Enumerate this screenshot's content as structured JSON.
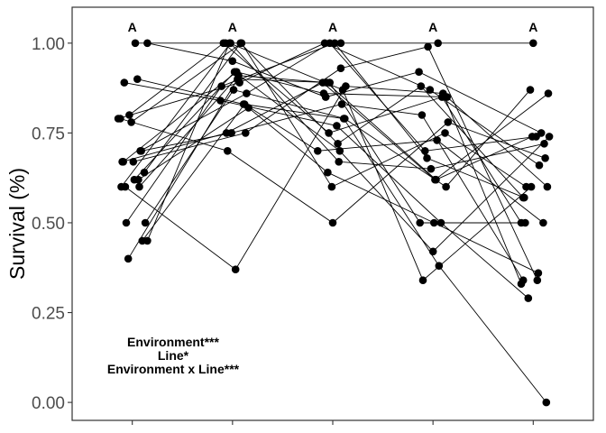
{
  "chart_data": {
    "type": "line",
    "title": "",
    "xlabel": "",
    "ylabel": "Survival (%)",
    "ylim": [
      -0.05,
      1.1
    ],
    "yticks": [
      0.0,
      0.25,
      0.5,
      0.75,
      1.0
    ],
    "ytick_labels": [
      "0.00",
      "0.25",
      "0.50",
      "0.75",
      "1.00"
    ],
    "xlim": [
      0.4,
      5.6
    ],
    "xticks": [
      1,
      2,
      3,
      4,
      5
    ],
    "grid": false,
    "legend": "none",
    "colors": {
      "points": "#000000",
      "lines": "#000000",
      "axis": "#333333",
      "ticks": "#4d4d4d"
    },
    "group_letters": [
      {
        "x": 1,
        "y": 1.045,
        "label": "A"
      },
      {
        "x": 2,
        "y": 1.045,
        "label": "A"
      },
      {
        "x": 3,
        "y": 1.045,
        "label": "A"
      },
      {
        "x": 4,
        "y": 1.045,
        "label": "A"
      },
      {
        "x": 5,
        "y": 1.045,
        "label": "A"
      }
    ],
    "annotations": [
      "Environment***",
      "Line*",
      "Environment x Line***"
    ],
    "series": [
      {
        "x": [
          1.03,
          1.93,
          3.08,
          4.05,
          5.0
        ],
        "y": [
          1.0,
          1.0,
          1.0,
          1.0,
          1.0
        ]
      },
      {
        "x": [
          0.96,
          2.05,
          2.97,
          3.87,
          4.92
        ],
        "y": [
          0.4,
          0.9,
          0.89,
          0.5,
          0.5
        ]
      },
      {
        "x": [
          1.1,
          2.12,
          2.85,
          4.04,
          5.1
        ],
        "y": [
          0.45,
          0.83,
          0.7,
          0.73,
          0.5
        ]
      },
      {
        "x": [
          1.15,
          1.97,
          3.1,
          3.9,
          4.98
        ],
        "y": [
          0.45,
          1.0,
          0.87,
          0.34,
          0.6
        ]
      },
      {
        "x": [
          0.93,
          2.03,
          3.13,
          4.1,
          4.88
        ],
        "y": [
          0.6,
          0.37,
          0.88,
          0.86,
          0.33
        ]
      },
      {
        "x": [
          0.88,
          1.95,
          3.0,
          4.15,
          5.12
        ],
        "y": [
          0.79,
          0.7,
          0.5,
          0.78,
          0.68
        ]
      },
      {
        "x": [
          1.12,
          2.08,
          3.05,
          3.88,
          4.9
        ],
        "y": [
          0.64,
          1.0,
          0.72,
          0.88,
          0.57
        ]
      },
      {
        "x": [
          0.9,
          1.94,
          2.9,
          4.02,
          5.15
        ],
        "y": [
          0.67,
          0.75,
          0.89,
          0.62,
          0.86
        ]
      },
      {
        "x": [
          1.08,
          2.14,
          2.97,
          3.92,
          5.03
        ],
        "y": [
          0.7,
          0.86,
          1.0,
          0.7,
          0.74
        ]
      },
      {
        "x": [
          0.92,
          1.88,
          3.04,
          4.08,
          4.95
        ],
        "y": [
          0.89,
          0.84,
          0.77,
          0.5,
          0.29
        ]
      },
      {
        "x": [
          1.15,
          2.0,
          2.93,
          3.86,
          5.08
        ],
        "y": [
          1.0,
          0.95,
          0.85,
          0.92,
          0.75
        ]
      },
      {
        "x": [
          1.02,
          2.02,
          3.07,
          4.0,
          5.16
        ],
        "y": [
          0.62,
          0.92,
          0.7,
          0.42,
          0.74
        ]
      },
      {
        "x": [
          0.99,
          2.09,
          2.99,
          4.12,
          4.93
        ],
        "y": [
          0.78,
          1.0,
          0.6,
          0.75,
          0.6
        ]
      },
      {
        "x": [
          1.05,
          2.11,
          3.11,
          4.06,
          5.13
        ],
        "y": [
          0.9,
          0.83,
          0.79,
          0.38,
          0.0
        ]
      },
      {
        "x": [
          0.94,
          1.89,
          3.02,
          3.94,
          4.91
        ],
        "y": [
          0.5,
          0.88,
          1.0,
          0.68,
          0.57
        ]
      },
      {
        "x": [
          1.07,
          2.06,
          2.94,
          4.03,
          4.99
        ],
        "y": [
          0.6,
          0.91,
          0.89,
          0.62,
          0.74
        ]
      },
      {
        "x": [
          0.86,
          2.07,
          2.92,
          3.97,
          5.06
        ],
        "y": [
          0.79,
          0.89,
          1.0,
          0.87,
          0.66
        ]
      },
      {
        "x": [
          0.97,
          1.91,
          2.96,
          4.09,
          4.88
        ],
        "y": [
          0.8,
          1.0,
          0.75,
          0.85,
          0.5
        ]
      },
      {
        "x": [
          1.01,
          2.13,
          3.08,
          3.95,
          5.04
        ],
        "y": [
          0.67,
          0.75,
          0.93,
          0.99,
          0.34
        ]
      },
      {
        "x": [
          1.13,
          2.01,
          3.12,
          4.13,
          4.97
        ],
        "y": [
          0.5,
          0.87,
          0.79,
          0.6,
          0.87
        ]
      },
      {
        "x": [
          0.89,
          1.98,
          3.06,
          3.98,
          5.11
        ],
        "y": [
          0.6,
          1.0,
          0.67,
          0.65,
          0.72
        ]
      },
      {
        "x": [
          1.06,
          2.16,
          2.95,
          4.01,
          5.05
        ],
        "y": [
          0.62,
          0.82,
          0.64,
          0.5,
          0.36
        ]
      },
      {
        "x": [
          1.09,
          1.99,
          3.09,
          3.89,
          4.9
        ],
        "y": [
          0.7,
          0.75,
          0.83,
          0.8,
          0.34
        ]
      },
      {
        "x": [
          0.91,
          2.04,
          2.91,
          4.14,
          5.14
        ],
        "y": [
          0.67,
          0.92,
          0.86,
          0.85,
          0.6
        ]
      }
    ]
  }
}
